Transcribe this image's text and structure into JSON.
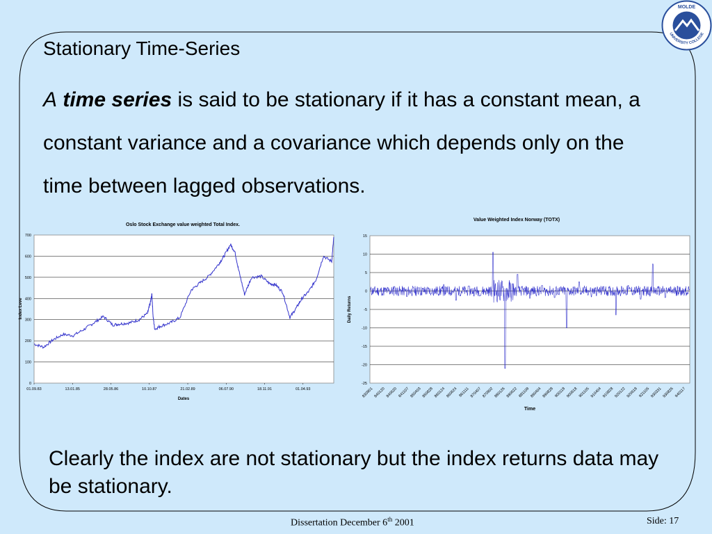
{
  "heading": "Stationary Time-Series",
  "intro": {
    "article": "A",
    "term": "time series",
    "rest": "is said to be stationary if it has a constant mean, a constant variance and a covariance which depends only on the time between lagged observations."
  },
  "conclusion": "Clearly the index are not stationary but the index returns data may be stationary.",
  "footer": {
    "prefix": "Dissertation December 6",
    "sup": "th",
    "suffix": " 2001",
    "page": "Side: 17"
  },
  "logo": {
    "text_top": "MOLDE",
    "text_ring": "UNIVERSITY COLLEGE",
    "color": "#2a4f9c"
  },
  "colors": {
    "background": "#cfe9fb",
    "series": "#3333cc",
    "plot_bg": "#ffffff"
  },
  "chart_data": [
    {
      "type": "line",
      "title": "Oslo Stock Exchange value weighted Total Index.",
      "xlabel": "Dates",
      "ylabel": "Index Leve",
      "ylim": [
        0,
        700
      ],
      "yticks": [
        0,
        100,
        200,
        300,
        400,
        500,
        600,
        700
      ],
      "xtick_labels": [
        "01.09.83",
        "13.01.85",
        "28.05.86",
        "10.10.87",
        "21.02.89",
        "06.07.90",
        "18.11.91",
        "01.04.93"
      ],
      "grid": true,
      "legend": "none",
      "series": [
        {
          "x": [
            "1983-09-01",
            "1984-01-01",
            "1984-05-01",
            "1984-09-01",
            "1985-01-13",
            "1985-06-01",
            "1985-10-01",
            "1986-02-01",
            "1986-05-28",
            "1986-09-01",
            "1987-01-01",
            "1987-05-01",
            "1987-08-15",
            "1987-09-20",
            "1987-10-10",
            "1987-10-25",
            "1987-11-15",
            "1988-02-01",
            "1988-06-01",
            "1988-10-01",
            "1989-02-21",
            "1989-06-01",
            "1989-10-01",
            "1990-02-01",
            "1990-04-15",
            "1990-07-06",
            "1990-09-01",
            "1990-10-15",
            "1991-01-01",
            "1991-04-01",
            "1991-08-01",
            "1991-11-18",
            "1992-02-01",
            "1992-05-01",
            "1992-08-01",
            "1992-10-20",
            "1993-01-01",
            "1993-04-01",
            "1993-07-01",
            "1993-10-01",
            "1994-01-15",
            "1994-02-10"
          ],
          "y": [
            185,
            170,
            205,
            230,
            225,
            255,
            285,
            315,
            275,
            280,
            285,
            300,
            330,
            380,
            420,
            315,
            255,
            270,
            285,
            310,
            440,
            470,
            505,
            560,
            600,
            655,
            620,
            540,
            420,
            500,
            505,
            470,
            465,
            430,
            310,
            355,
            400,
            435,
            490,
            600,
            575,
            690
          ]
        }
      ]
    },
    {
      "type": "line",
      "title": "Value Weighted Index Norway (TOTX)",
      "xlabel": "Time",
      "ylabel": "Daily Returns",
      "ylim": [
        -25,
        15
      ],
      "yticks": [
        -25,
        -20,
        -15,
        -10,
        -5,
        0,
        5,
        10,
        15
      ],
      "xtick_labels": [
        "830901",
        "840120",
        "840620",
        "841107",
        "850403",
        "850828",
        "860124",
        "860624",
        "861111",
        "870407",
        "870902",
        "880126",
        "880622",
        "881109",
        "890404",
        "890828",
        "900118",
        "900618",
        "901105",
        "910404",
        "910828",
        "920122",
        "920618",
        "921105",
        "930331",
        "930826",
        "940117"
      ],
      "grid": true,
      "legend": "none",
      "series": [
        {
          "x": [
            "830901",
            "840120",
            "840620",
            "841107",
            "850403",
            "850828",
            "860124",
            "860624",
            "861111",
            "870407",
            "870902",
            "880126",
            "880622",
            "881109",
            "890404",
            "890828",
            "900118",
            "900618",
            "901105",
            "910404",
            "910828",
            "920122",
            "920618",
            "921105",
            "930331",
            "930826",
            "940117"
          ],
          "y": [
            0.5,
            -0.8,
            1.2,
            -1.5,
            0.9,
            -0.6,
            1.8,
            -2.5,
            1.3,
            -1.2,
            10.5,
            -21,
            4.5,
            -2,
            1.5,
            -1.8,
            -10,
            2.5,
            -1.6,
            1.2,
            -6.5,
            1.5,
            -2.2,
            7.3,
            -1.8,
            1.3,
            0.4
          ]
        }
      ]
    }
  ]
}
